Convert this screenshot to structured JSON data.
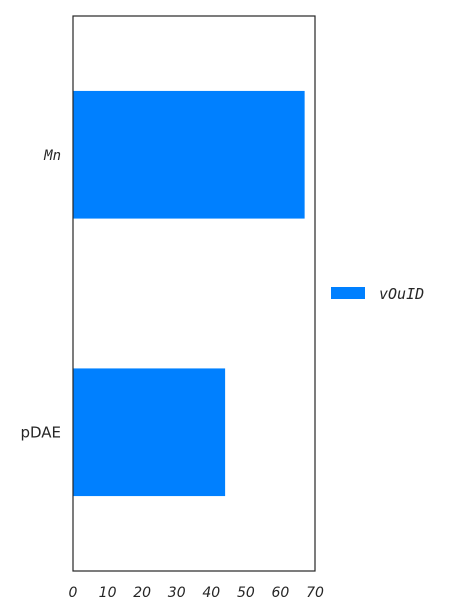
{
  "chart_data": {
    "type": "bar",
    "orientation": "horizontal",
    "categories": [
      "Mn",
      "pDAE"
    ],
    "series": [
      {
        "name": "vOuID",
        "values": [
          67,
          44
        ],
        "color": "#0080ff"
      }
    ],
    "xlim": [
      0,
      70
    ],
    "xticks": [
      "0",
      "10",
      "20",
      "30",
      "40",
      "50",
      "60",
      "70"
    ],
    "xlabel": "",
    "ylabel": "",
    "title": "",
    "grid": false,
    "legend_position": "right"
  }
}
